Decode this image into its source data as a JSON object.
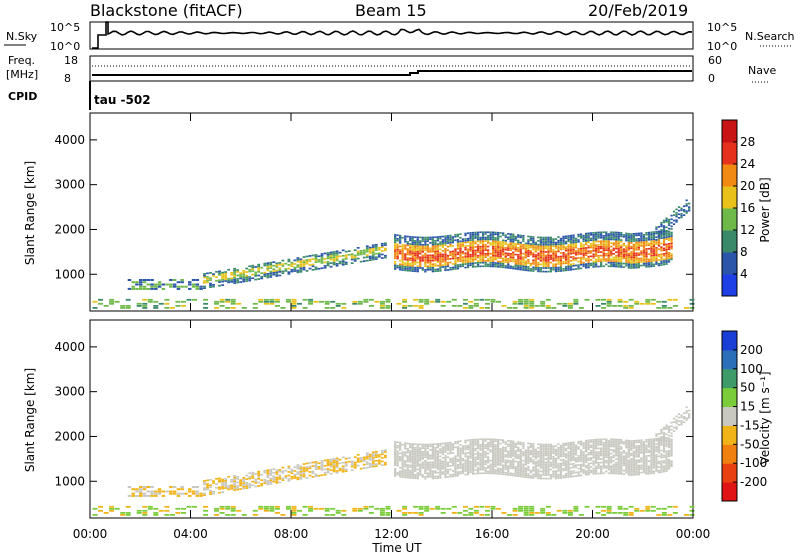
{
  "header": {
    "station": "Blackstone (fitACF)",
    "beam": "Beam 15",
    "date": "20/Feb/2019"
  },
  "top_panels": {
    "nsky_label": "N.Sky",
    "nsky_ticks": [
      "10^5",
      "10^0"
    ],
    "nsearch_label": "N.Search",
    "freq_label": "Freq.",
    "freq_unit": "[MHz]",
    "freq_ticks": [
      "18",
      "8"
    ],
    "nave_label": "Nave",
    "nave_ticks": [
      "60",
      "0"
    ],
    "cpid_label": "CPID",
    "cpid_value": "tau  -502"
  },
  "chart_data": [
    {
      "type": "heatmap",
      "panel": "power",
      "ylabel": "Slant Range [km]",
      "xlabel": "",
      "ylim": [
        180,
        4600
      ],
      "yticks": [
        1000,
        2000,
        3000,
        4000
      ],
      "colorbar_label": "Power [dB]",
      "colorbar_ticks": [
        "4",
        "8",
        "12",
        "16",
        "20",
        "24",
        "28"
      ],
      "colors": [
        "#1f3fe6",
        "#2a55a8",
        "#3a8a6a",
        "#6fb84a",
        "#e8c21a",
        "#f08a12",
        "#e6321c",
        "#c81414"
      ]
    },
    {
      "type": "heatmap",
      "panel": "velocity",
      "ylabel": "Slant Range [km]",
      "xlabel": "Time UT",
      "xticks": [
        "00:00",
        "04:00",
        "08:00",
        "12:00",
        "16:00",
        "20:00",
        "00:00"
      ],
      "ylim": [
        180,
        4600
      ],
      "yticks": [
        1000,
        2000,
        3000,
        4000
      ],
      "colorbar_label": "Velocity [m s⁻¹]",
      "colorbar_ticks": [
        "200",
        "100",
        "50",
        "15",
        "-15",
        "-50",
        "-100",
        "-200"
      ],
      "colors": [
        "#1a3fd6",
        "#2a6fb8",
        "#3f9a6a",
        "#7acc3a",
        "#c8c8c0",
        "#f0b418",
        "#f08010",
        "#e84010",
        "#e01414"
      ],
      "ground_scatter_color": "#c8c8c0"
    }
  ]
}
